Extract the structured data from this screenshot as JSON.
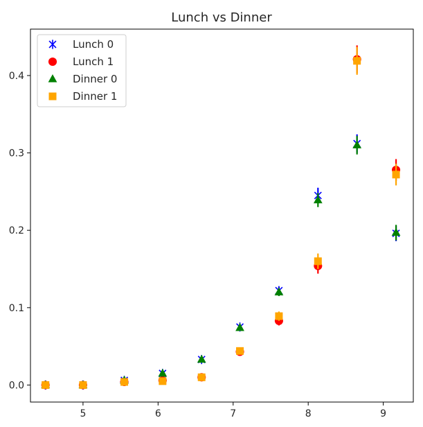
{
  "chart_data": {
    "type": "scatter",
    "title": "Lunch vs Dinner",
    "xlabel": "",
    "ylabel": "",
    "xlim": [
      4.3,
      9.4
    ],
    "ylim": [
      -0.022,
      0.46
    ],
    "x": [
      4.5,
      5.0,
      5.55,
      6.06,
      6.58,
      7.09,
      7.61,
      8.13,
      8.65,
      9.17
    ],
    "x_ticks": [
      5,
      6,
      7,
      8,
      9
    ],
    "y_ticks": [
      0.0,
      0.1,
      0.2,
      0.3,
      0.4
    ],
    "y_tick_labels": [
      "0.0",
      "0.1",
      "0.2",
      "0.3",
      "0.4"
    ],
    "grid": false,
    "legend_position": "top-left",
    "series": [
      {
        "name": "Lunch 0",
        "marker": "x",
        "color": "#0000ff",
        "offset": 0,
        "values": [
          0.0,
          0.0,
          0.006,
          0.015,
          0.033,
          0.075,
          0.122,
          0.245,
          0.312,
          0.196
        ],
        "errors": [
          0.001,
          0.001,
          0.002,
          0.003,
          0.003,
          0.004,
          0.005,
          0.01,
          0.012,
          0.01
        ]
      },
      {
        "name": "Lunch 1",
        "marker": "o",
        "color": "#ff0000",
        "offset": 0,
        "values": [
          0.0,
          0.0,
          0.004,
          0.006,
          0.01,
          0.043,
          0.083,
          0.154,
          0.421,
          0.278
        ],
        "errors": [
          0.001,
          0.001,
          0.002,
          0.002,
          0.002,
          0.004,
          0.006,
          0.01,
          0.018,
          0.014
        ]
      },
      {
        "name": "Dinner 0",
        "marker": "^",
        "color": "#008000",
        "offset": 0,
        "values": [
          0.0,
          0.0,
          0.006,
          0.015,
          0.033,
          0.074,
          0.12,
          0.239,
          0.31,
          0.197
        ],
        "errors": [
          0.001,
          0.001,
          0.002,
          0.003,
          0.003,
          0.004,
          0.005,
          0.009,
          0.012,
          0.01
        ]
      },
      {
        "name": "Dinner 1",
        "marker": "s",
        "color": "#ffa500",
        "offset": 0,
        "values": [
          0.0,
          0.0,
          0.004,
          0.005,
          0.01,
          0.044,
          0.089,
          0.16,
          0.419,
          0.272
        ],
        "errors": [
          0.001,
          0.001,
          0.002,
          0.002,
          0.002,
          0.004,
          0.006,
          0.01,
          0.018,
          0.014
        ]
      }
    ]
  }
}
